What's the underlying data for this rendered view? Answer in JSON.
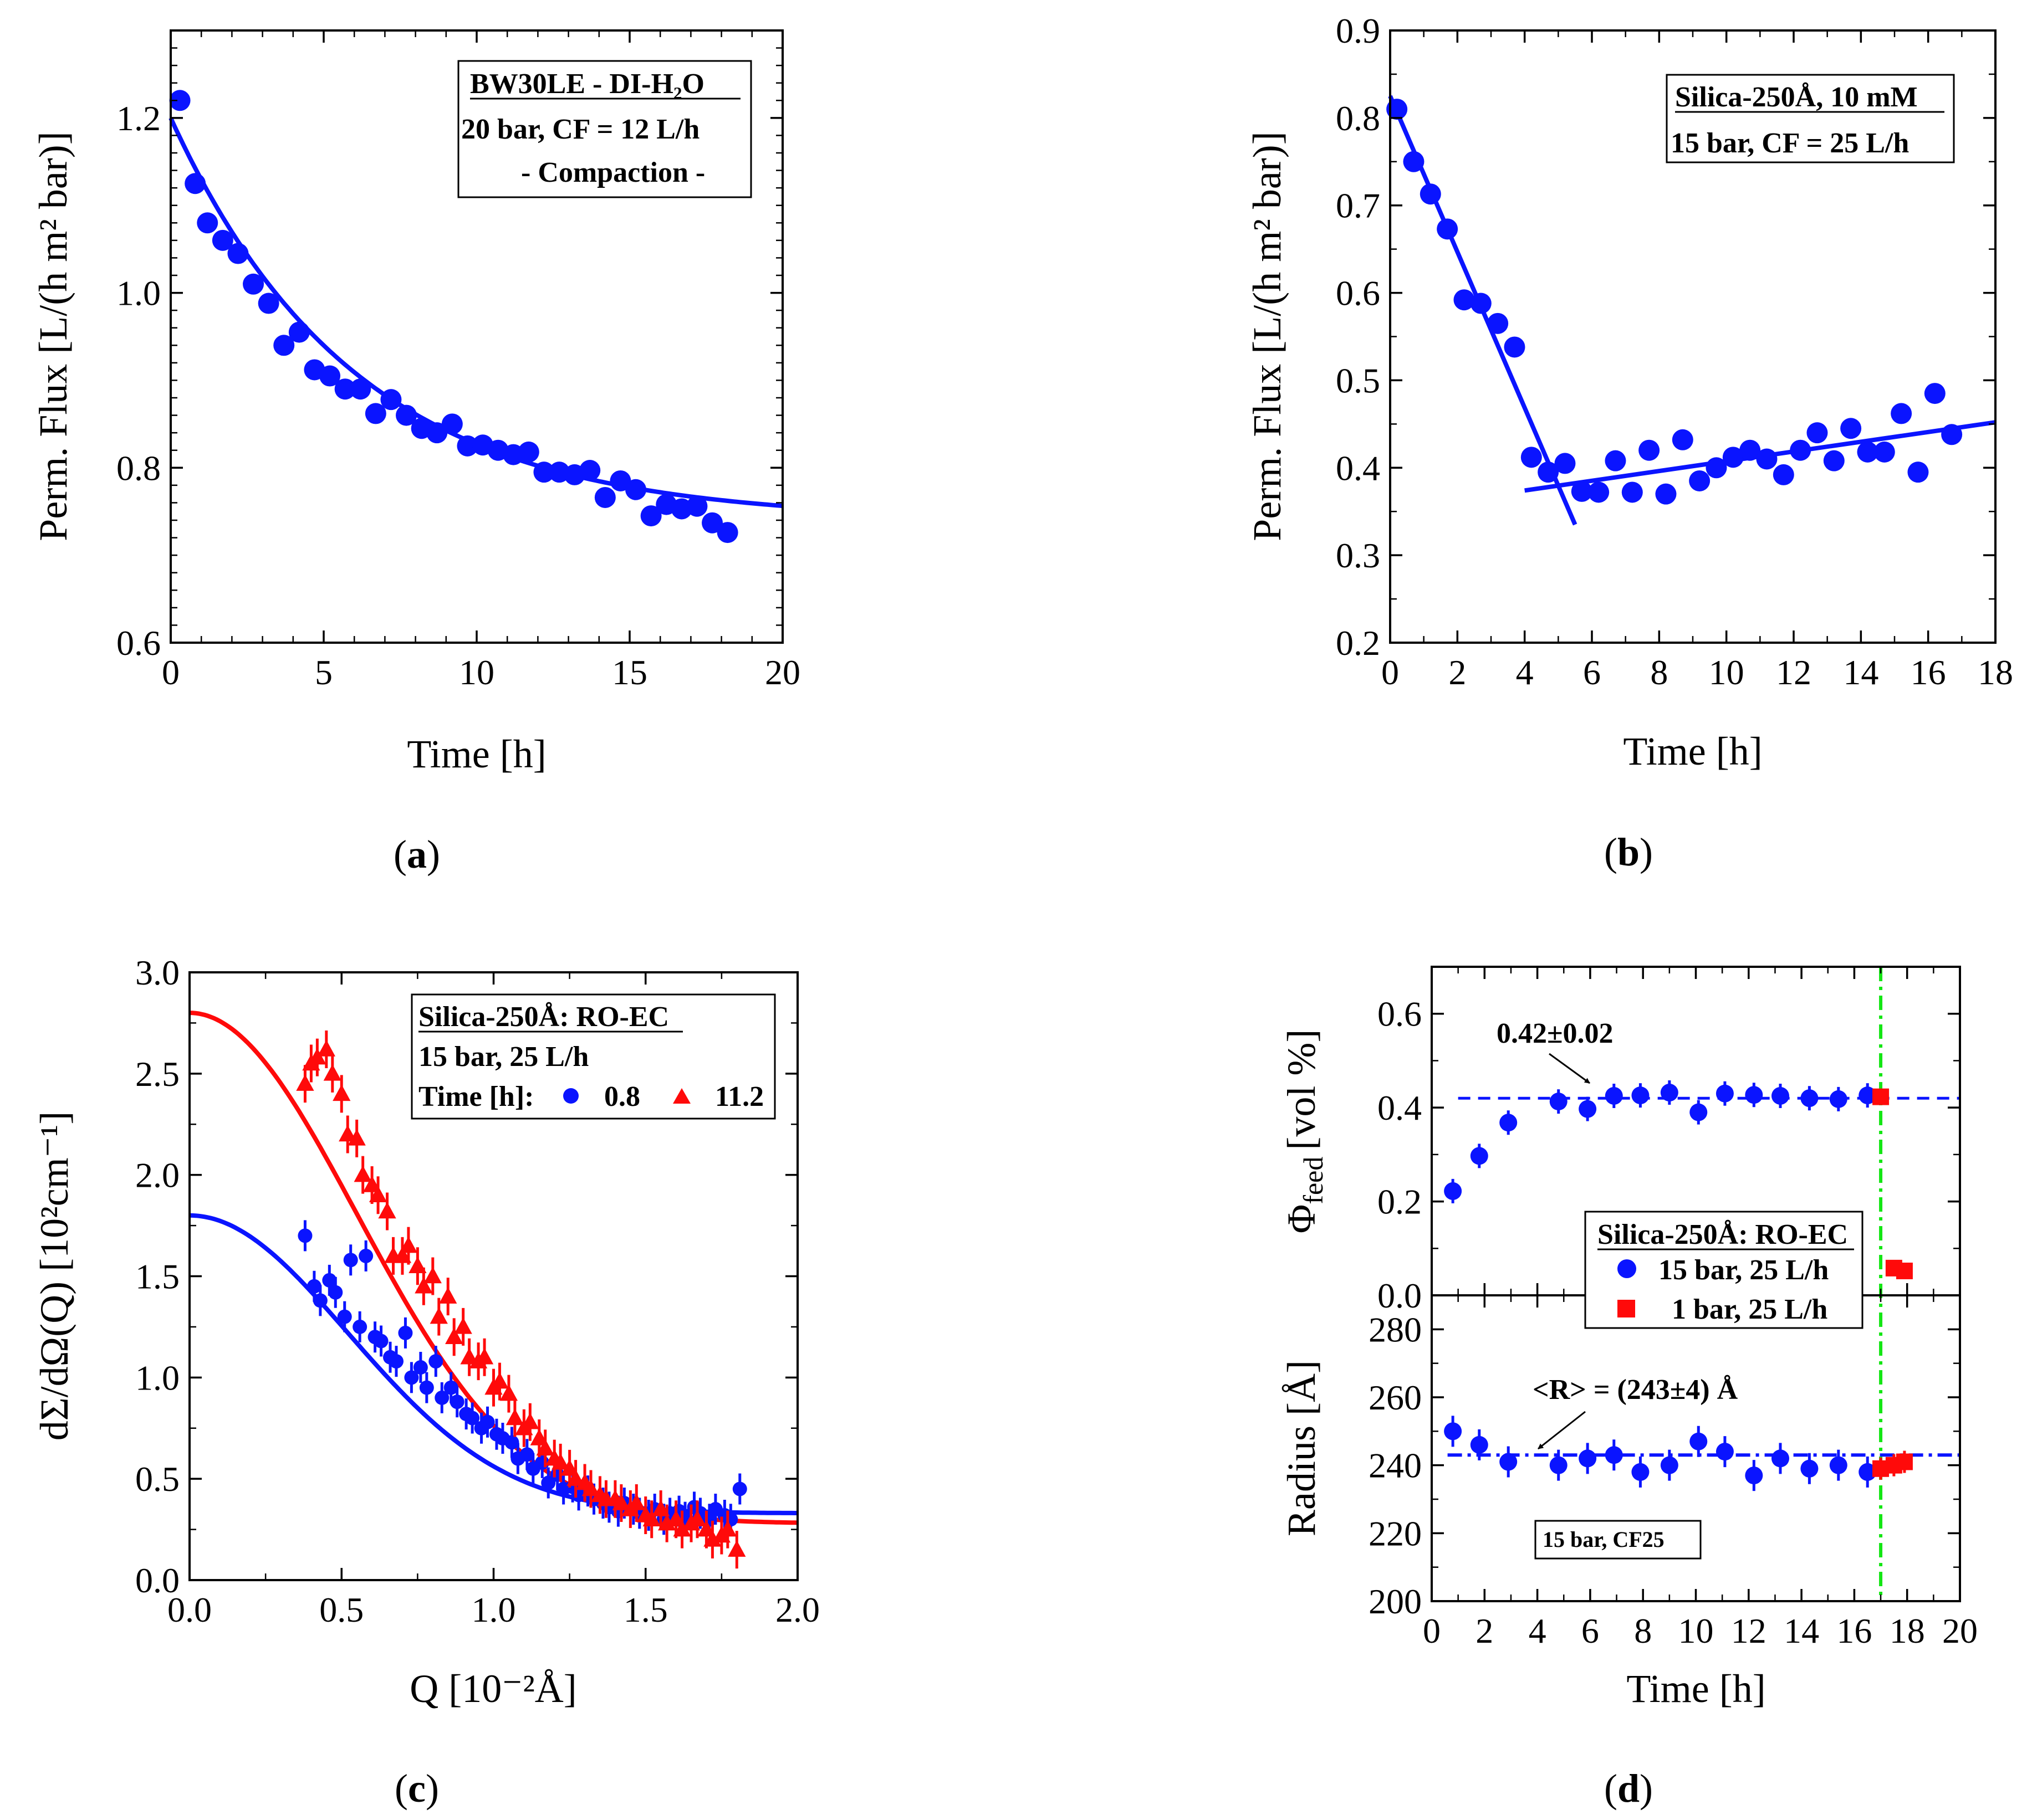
{
  "colors": {
    "blue": "#0a14ff",
    "red": "#ff0a0a",
    "green": "#14e614",
    "black": "#000000"
  },
  "chart_data": [
    {
      "panel": "(a)",
      "caption_letter": "a",
      "type": "scatter",
      "xlabel": "Time [h]",
      "ylabel": "Perm. Flux [L/(h m² bar)]",
      "xlim": [
        0,
        20
      ],
      "ylim": [
        0.6,
        1.3
      ],
      "xticks": [
        "0",
        "5",
        "10",
        "15",
        "20"
      ],
      "yticks": [
        "0.6",
        "0.8",
        "1.0",
        "1.2"
      ],
      "legend": {
        "title": "BW30LE - DI-H₂O",
        "lines": [
          "20 bar, CF = 12 L/h",
          "- Compaction -"
        ]
      },
      "series": [
        {
          "name": "Permeate flux",
          "x": [
            0.3,
            0.8,
            1.2,
            1.7,
            2.2,
            2.7,
            3.2,
            3.7,
            4.2,
            4.7,
            5.2,
            5.7,
            6.2,
            6.7,
            7.2,
            7.7,
            8.2,
            8.7,
            9.2,
            9.7,
            10.2,
            10.7,
            11.2,
            11.7,
            12.2,
            12.7,
            13.2,
            13.7,
            14.2,
            14.7,
            15.2,
            15.7,
            16.2,
            16.7,
            17.2,
            17.7,
            18.2
          ],
          "y": [
            1.22,
            1.125,
            1.08,
            1.06,
            1.045,
            1.01,
            0.988,
            0.94,
            0.955,
            0.912,
            0.905,
            0.89,
            0.89,
            0.862,
            0.878,
            0.86,
            0.845,
            0.84,
            0.85,
            0.825,
            0.826,
            0.82,
            0.815,
            0.818,
            0.795,
            0.795,
            0.792,
            0.797,
            0.766,
            0.785,
            0.775,
            0.745,
            0.758,
            0.753,
            0.756,
            0.737,
            0.726
          ]
        }
      ],
      "fit": {
        "type": "exponential",
        "y0": 0.74,
        "A": 0.46,
        "tau": 6.0
      }
    },
    {
      "panel": "(b)",
      "caption_letter": "b",
      "type": "scatter",
      "xlabel": "Time [h]",
      "ylabel": "Perm. Flux [L/(h m² bar)]",
      "xlim": [
        0,
        18
      ],
      "ylim": [
        0.2,
        0.9
      ],
      "xticks": [
        "0",
        "2",
        "4",
        "6",
        "8",
        "10",
        "12",
        "14",
        "16",
        "18"
      ],
      "yticks": [
        "0.2",
        "0.3",
        "0.4",
        "0.5",
        "0.6",
        "0.7",
        "0.8",
        "0.9"
      ],
      "legend": {
        "title": "Silica-250Å, 10 mM",
        "lines": [
          "15 bar, CF = 25 L/h"
        ]
      },
      "series": [
        {
          "name": "Permeate flux",
          "x": [
            0.2,
            0.7,
            1.2,
            1.7,
            2.2,
            2.7,
            3.2,
            3.7,
            4.2,
            4.7,
            5.2,
            5.7,
            6.2,
            6.7,
            7.2,
            7.7,
            8.2,
            8.7,
            9.2,
            9.7,
            10.2,
            10.7,
            11.2,
            11.7,
            12.2,
            12.7,
            13.2,
            13.7,
            14.2,
            14.7,
            15.2,
            15.7,
            16.2,
            16.7
          ],
          "y": [
            0.81,
            0.75,
            0.713,
            0.673,
            0.592,
            0.588,
            0.565,
            0.538,
            0.412,
            0.395,
            0.405,
            0.373,
            0.372,
            0.408,
            0.372,
            0.42,
            0.37,
            0.432,
            0.385,
            0.4,
            0.412,
            0.42,
            0.41,
            0.392,
            0.42,
            0.44,
            0.408,
            0.445,
            0.418,
            0.418,
            0.462,
            0.395,
            0.485,
            0.438
          ]
        }
      ],
      "fits": [
        {
          "type": "linear",
          "x": [
            0,
            5.5
          ],
          "y": [
            0.825,
            0.335
          ]
        },
        {
          "type": "linear",
          "x": [
            4,
            18
          ],
          "y": [
            0.374,
            0.452
          ]
        }
      ]
    },
    {
      "panel": "(c)",
      "caption_letter": "c",
      "type": "scatter",
      "xlabel": "Q [10⁻²Å]",
      "ylabel": "dΣ/dΩ(Q) [10²cm⁻¹]",
      "xlim": [
        0,
        2
      ],
      "ylim": [
        0,
        3
      ],
      "xticks": [
        "0.0",
        "0.5",
        "1.0",
        "1.5",
        "2.0"
      ],
      "yticks": [
        "0.0",
        "0.5",
        "1.0",
        "1.5",
        "2.0",
        "2.5",
        "3.0"
      ],
      "legend": {
        "title": "Silica-250Å: RO-EC",
        "lines": [
          "15 bar, 25 L/h"
        ],
        "time_label": "Time [h]:",
        "entries": [
          "0.8",
          "11.2"
        ]
      },
      "series": [
        {
          "name": "0.8",
          "marker": "circle",
          "x": [
            0.38,
            0.41,
            0.43,
            0.46,
            0.48,
            0.51,
            0.53,
            0.56,
            0.58,
            0.61,
            0.63,
            0.66,
            0.68,
            0.71,
            0.73,
            0.76,
            0.78,
            0.81,
            0.83,
            0.86,
            0.88,
            0.91,
            0.93,
            0.96,
            0.98,
            1.01,
            1.03,
            1.06,
            1.08,
            1.11,
            1.13,
            1.16,
            1.18,
            1.21,
            1.23,
            1.26,
            1.28,
            1.31,
            1.33,
            1.36,
            1.38,
            1.41,
            1.43,
            1.46,
            1.48,
            1.51,
            1.53,
            1.56,
            1.58,
            1.61,
            1.63,
            1.66,
            1.68,
            1.71,
            1.73,
            1.76,
            1.78,
            1.81
          ],
          "y": [
            1.7,
            1.45,
            1.38,
            1.48,
            1.42,
            1.3,
            1.58,
            1.25,
            1.6,
            1.2,
            1.18,
            1.1,
            1.08,
            1.22,
            1.0,
            1.05,
            0.95,
            1.08,
            0.9,
            0.95,
            0.88,
            0.82,
            0.8,
            0.75,
            0.78,
            0.72,
            0.7,
            0.68,
            0.6,
            0.62,
            0.55,
            0.58,
            0.48,
            0.52,
            0.45,
            0.46,
            0.42,
            0.44,
            0.4,
            0.38,
            0.36,
            0.34,
            0.38,
            0.35,
            0.33,
            0.32,
            0.35,
            0.3,
            0.33,
            0.34,
            0.31,
            0.36,
            0.33,
            0.3,
            0.35,
            0.32,
            0.3,
            0.45
          ]
        },
        {
          "name": "11.2",
          "marker": "triangle",
          "x": [
            0.38,
            0.4,
            0.42,
            0.45,
            0.47,
            0.5,
            0.52,
            0.55,
            0.57,
            0.6,
            0.62,
            0.65,
            0.67,
            0.7,
            0.72,
            0.75,
            0.77,
            0.8,
            0.82,
            0.85,
            0.87,
            0.9,
            0.92,
            0.95,
            0.97,
            1.0,
            1.02,
            1.05,
            1.07,
            1.1,
            1.12,
            1.15,
            1.17,
            1.2,
            1.22,
            1.25,
            1.27,
            1.3,
            1.32,
            1.35,
            1.37,
            1.4,
            1.42,
            1.45,
            1.47,
            1.5,
            1.52,
            1.55,
            1.57,
            1.6,
            1.62,
            1.65,
            1.67,
            1.7,
            1.72,
            1.75,
            1.77,
            1.8
          ],
          "y": [
            2.45,
            2.55,
            2.58,
            2.62,
            2.5,
            2.4,
            2.2,
            2.18,
            2.0,
            1.95,
            1.9,
            1.82,
            1.6,
            1.6,
            1.65,
            1.55,
            1.45,
            1.5,
            1.3,
            1.4,
            1.2,
            1.25,
            1.1,
            1.08,
            1.1,
            0.95,
            0.98,
            0.92,
            0.8,
            0.75,
            0.78,
            0.7,
            0.65,
            0.6,
            0.58,
            0.55,
            0.5,
            0.48,
            0.45,
            0.42,
            0.4,
            0.4,
            0.38,
            0.35,
            0.38,
            0.32,
            0.3,
            0.35,
            0.28,
            0.3,
            0.25,
            0.28,
            0.3,
            0.25,
            0.2,
            0.22,
            0.25,
            0.15
          ]
        }
      ],
      "fits": [
        {
          "name": "0.8",
          "type": "gaussian",
          "base": 0.33,
          "amp": 1.47,
          "width": 0.52
        },
        {
          "name": "11.2",
          "type": "gaussian",
          "base": 0.28,
          "amp": 2.52,
          "width": 0.55
        }
      ]
    },
    {
      "panel": "(d)",
      "caption_letter": "d",
      "type": "scatter",
      "xlabel": "Time [h]",
      "xlim": [
        0,
        20
      ],
      "xticks": [
        "0",
        "2",
        "4",
        "6",
        "8",
        "10",
        "12",
        "14",
        "16",
        "18",
        "20"
      ],
      "marker_line_x": 17,
      "legend": {
        "title": "Silica-250Å: RO-EC",
        "entries": [
          "15 bar, 25 L/h",
          "1 bar, 25 L/h"
        ]
      },
      "top": {
        "ylabel_main": "Φ",
        "ylabel_sub": "feed",
        "ylabel_unit": "[vol %]",
        "ylim": [
          0,
          0.7
        ],
        "yticks": [
          "0.0",
          "0.2",
          "0.4",
          "0.6"
        ],
        "mean_value": 0.42,
        "annotation": "0.42±0.02",
        "series": [
          {
            "name": "15 bar, 25 L/h",
            "marker": "circle",
            "x": [
              0.8,
              1.8,
              2.9,
              4.8,
              5.9,
              6.9,
              7.9,
              9.0,
              10.1,
              11.1,
              12.2,
              13.2,
              14.3,
              15.4,
              16.5
            ],
            "y": [
              0.222,
              0.297,
              0.368,
              0.413,
              0.397,
              0.425,
              0.426,
              0.432,
              0.39,
              0.43,
              0.427,
              0.425,
              0.42,
              0.418,
              0.426
            ]
          },
          {
            "name": "1 bar, 25 L/h",
            "marker": "square",
            "x": [
              17.0,
              17.5,
              17.9
            ],
            "y": [
              0.423,
              0.058,
              0.052
            ]
          }
        ]
      },
      "bottom": {
        "ylabel": "Radius [Å]",
        "ylim": [
          200,
          290
        ],
        "yticks": [
          "200",
          "220",
          "240",
          "260",
          "280"
        ],
        "mean_value": 243,
        "annotation": "<R> = (243±4) Å",
        "note": "15 bar, CF25",
        "series": [
          {
            "name": "15 bar, 25 L/h",
            "marker": "circle",
            "x": [
              0.8,
              1.8,
              2.9,
              4.8,
              5.9,
              6.9,
              7.9,
              9.0,
              10.1,
              11.1,
              12.2,
              13.2,
              14.3,
              15.4,
              16.5
            ],
            "y": [
              250,
              246,
              241,
              240,
              242,
              243,
              238,
              240,
              247,
              244,
              237,
              242,
              239,
              240,
              238
            ]
          },
          {
            "name": "1 bar, 25 L/h",
            "marker": "square",
            "x": [
              17.0,
              17.5,
              17.9
            ],
            "y": [
              239,
              240,
              241
            ]
          }
        ]
      }
    }
  ]
}
